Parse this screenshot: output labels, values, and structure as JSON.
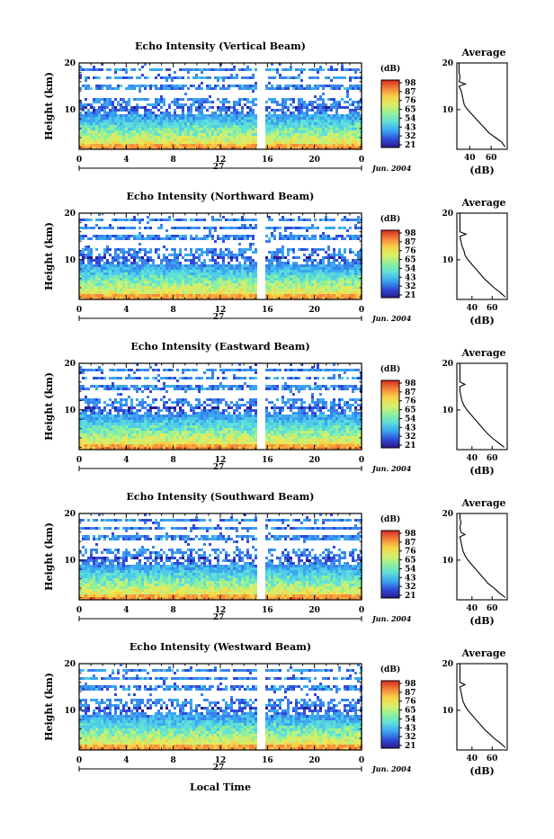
{
  "xlabel_bottom": "Local Time",
  "chart_data": [
    {
      "type": "heatmap",
      "title": "Echo Intensity (Vertical Beam)",
      "ylabel": "Height (km)",
      "yticks": [
        "20",
        "10"
      ],
      "ylim": [
        1.5,
        20
      ],
      "xticks": [
        "0",
        "4",
        "8",
        "12",
        "16",
        "20",
        "0"
      ],
      "xlim": [
        0,
        24
      ],
      "date_day": "27",
      "date_month": "Jun. 2004",
      "gap_hours": [
        15,
        15.5
      ],
      "colorbar": {
        "unit": "(dB)",
        "ticks": [
          "98",
          "87",
          "76",
          "65",
          "54",
          "43",
          "32",
          "21"
        ]
      },
      "profile": {
        "title": "Average",
        "xlabel": "(dB)",
        "xticks": [
          "40",
          "60"
        ],
        "xlim": [
          28,
          75
        ],
        "height_km": [
          2,
          3,
          4,
          5,
          6,
          7,
          8,
          9,
          10,
          11,
          12,
          13,
          14,
          15,
          15.5,
          16,
          17,
          18,
          19,
          20
        ],
        "echo_db": [
          73,
          70,
          64,
          58,
          54,
          50,
          46,
          42,
          38,
          35,
          34,
          33,
          32,
          30,
          36,
          30,
          31,
          30,
          30,
          30
        ]
      }
    },
    {
      "type": "heatmap",
      "title": "Echo Intensity (Northward Beam)",
      "ylabel": "Height (km)",
      "yticks": [
        "20",
        "10"
      ],
      "ylim": [
        1.5,
        20
      ],
      "xticks": [
        "0",
        "4",
        "8",
        "12",
        "16",
        "20",
        "0"
      ],
      "xlim": [
        0,
        24
      ],
      "date_day": "27",
      "date_month": "Jun. 2004",
      "gap_hours": [
        15,
        15.5
      ],
      "colorbar": {
        "unit": "(dB)",
        "ticks": [
          "98",
          "87",
          "76",
          "65",
          "54",
          "43",
          "32",
          "21"
        ]
      },
      "profile": {
        "title": "Average",
        "xlabel": "(dB)",
        "xticks": [
          "40",
          "60"
        ],
        "xlim": [
          25,
          75
        ],
        "height_km": [
          2,
          3,
          4,
          5,
          6,
          7,
          8,
          9,
          10,
          11,
          12,
          13,
          14,
          15,
          15.5,
          16,
          17,
          18,
          19,
          20
        ],
        "echo_db": [
          73,
          68,
          62,
          57,
          52,
          48,
          44,
          40,
          36,
          33,
          32,
          30,
          29,
          28,
          34,
          28,
          28,
          28,
          28,
          28
        ]
      }
    },
    {
      "type": "heatmap",
      "title": "Echo Intensity (Eastward Beam)",
      "ylabel": "Height (km)",
      "yticks": [
        "20",
        "10"
      ],
      "ylim": [
        1.5,
        20
      ],
      "xticks": [
        "0",
        "4",
        "8",
        "12",
        "16",
        "20",
        "0"
      ],
      "xlim": [
        0,
        24
      ],
      "date_day": "27",
      "date_month": "Jun. 2004",
      "gap_hours": [
        15,
        15.5
      ],
      "colorbar": {
        "unit": "(dB)",
        "ticks": [
          "98",
          "87",
          "76",
          "65",
          "54",
          "43",
          "32",
          "21"
        ]
      },
      "profile": {
        "title": "Average",
        "xlabel": "(dB)",
        "xticks": [
          "40",
          "60"
        ],
        "xlim": [
          25,
          75
        ],
        "height_km": [
          2,
          3,
          4,
          5,
          6,
          7,
          8,
          9,
          10,
          11,
          12,
          13,
          14,
          15,
          15.5,
          16,
          17,
          18,
          19,
          20
        ],
        "echo_db": [
          72,
          66,
          60,
          55,
          51,
          47,
          43,
          39,
          35,
          32,
          30,
          29,
          28,
          28,
          33,
          28,
          28,
          28,
          28,
          28
        ]
      }
    },
    {
      "type": "heatmap",
      "title": "Echo Intensity (Southward Beam)",
      "ylabel": "Height (km)",
      "yticks": [
        "20",
        "10"
      ],
      "ylim": [
        1.5,
        20
      ],
      "xticks": [
        "0",
        "4",
        "8",
        "12",
        "16",
        "20",
        "0"
      ],
      "xlim": [
        0,
        24
      ],
      "date_day": "27",
      "date_month": "Jun. 2004",
      "gap_hours": [
        15,
        15.5
      ],
      "colorbar": {
        "unit": "(dB)",
        "ticks": [
          "98",
          "87",
          "76",
          "65",
          "54",
          "43",
          "32",
          "21"
        ]
      },
      "profile": {
        "title": "Average",
        "xlabel": "(dB)",
        "xticks": [
          "40",
          "60"
        ],
        "xlim": [
          25,
          75
        ],
        "height_km": [
          2,
          3,
          4,
          5,
          6,
          7,
          8,
          9,
          10,
          11,
          12,
          13,
          14,
          15,
          15.5,
          16,
          17,
          18,
          19,
          20
        ],
        "echo_db": [
          73,
          67,
          62,
          56,
          52,
          48,
          44,
          40,
          36,
          33,
          31,
          30,
          29,
          28,
          33,
          29,
          28,
          29,
          28,
          28
        ]
      }
    },
    {
      "type": "heatmap",
      "title": "Echo Intensity (Westward Beam)",
      "ylabel": "Height (km)",
      "yticks": [
        "20",
        "10"
      ],
      "ylim": [
        1.5,
        20
      ],
      "xticks": [
        "0",
        "4",
        "8",
        "12",
        "16",
        "20",
        "0"
      ],
      "xlim": [
        0,
        24
      ],
      "date_day": "27",
      "date_month": "Jun. 2004",
      "gap_hours": [
        15,
        15.5
      ],
      "colorbar": {
        "unit": "(dB)",
        "ticks": [
          "98",
          "87",
          "76",
          "65",
          "54",
          "43",
          "32",
          "21"
        ]
      },
      "profile": {
        "title": "Average",
        "xlabel": "(dB)",
        "xticks": [
          "40",
          "60"
        ],
        "xlim": [
          25,
          75
        ],
        "height_km": [
          2,
          3,
          4,
          5,
          6,
          7,
          8,
          9,
          10,
          11,
          12,
          13,
          14,
          15,
          15.5,
          16,
          17,
          18,
          19,
          20
        ],
        "echo_db": [
          73,
          68,
          62,
          57,
          52,
          48,
          44,
          40,
          36,
          33,
          31,
          30,
          29,
          28,
          33,
          28,
          28,
          28,
          28,
          28
        ]
      }
    }
  ]
}
